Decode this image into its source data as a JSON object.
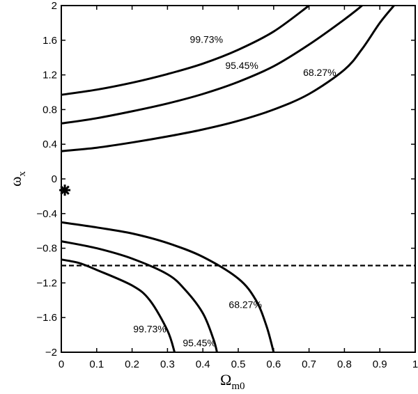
{
  "chart_data": {
    "type": "line",
    "title": "",
    "xlabel": {
      "symbol": "Ω",
      "subscript": "m0"
    },
    "ylabel": {
      "symbol": "ω",
      "subscript": "x"
    },
    "xlim": [
      0,
      1
    ],
    "ylim": [
      -2,
      2
    ],
    "xticks": [
      "0",
      "0.1",
      "0.2",
      "0.3",
      "0.4",
      "0.5",
      "0.6",
      "0.7",
      "0.8",
      "0.9",
      "1"
    ],
    "yticks": [
      "−2",
      "−1.6",
      "−1.2",
      "−0.8",
      "−0.4",
      "0",
      "0.4",
      "0.8",
      "1.2",
      "1.6",
      "2"
    ],
    "grid": false,
    "reference_line": {
      "y": -1,
      "style": "dashed"
    },
    "best_fit_point": {
      "x": 0.01,
      "y": -0.13,
      "marker": "asterisk"
    },
    "contours": [
      {
        "label": "68.27%",
        "upper_branch": [
          [
            0,
            0.32
          ],
          [
            0.1,
            0.36
          ],
          [
            0.2,
            0.42
          ],
          [
            0.3,
            0.49
          ],
          [
            0.4,
            0.57
          ],
          [
            0.5,
            0.67
          ],
          [
            0.6,
            0.8
          ],
          [
            0.7,
            0.98
          ],
          [
            0.8,
            1.26
          ],
          [
            0.85,
            1.5
          ],
          [
            0.9,
            1.8
          ],
          [
            0.94,
            2.0
          ]
        ],
        "lower_branch": [
          [
            0,
            -0.5
          ],
          [
            0.1,
            -0.56
          ],
          [
            0.2,
            -0.63
          ],
          [
            0.3,
            -0.74
          ],
          [
            0.4,
            -0.9
          ],
          [
            0.5,
            -1.15
          ],
          [
            0.55,
            -1.4
          ],
          [
            0.58,
            -1.7
          ],
          [
            0.6,
            -2.0
          ]
        ]
      },
      {
        "label": "95.45%",
        "upper_branch": [
          [
            0,
            0.64
          ],
          [
            0.1,
            0.7
          ],
          [
            0.2,
            0.78
          ],
          [
            0.3,
            0.87
          ],
          [
            0.4,
            0.98
          ],
          [
            0.5,
            1.12
          ],
          [
            0.6,
            1.3
          ],
          [
            0.7,
            1.55
          ],
          [
            0.8,
            1.84
          ],
          [
            0.85,
            2.0
          ]
        ],
        "lower_branch": [
          [
            0,
            -0.72
          ],
          [
            0.1,
            -0.8
          ],
          [
            0.2,
            -0.92
          ],
          [
            0.3,
            -1.1
          ],
          [
            0.35,
            -1.28
          ],
          [
            0.4,
            -1.55
          ],
          [
            0.43,
            -1.85
          ],
          [
            0.44,
            -2.0
          ]
        ]
      },
      {
        "label": "99.73%",
        "upper_branch": [
          [
            0,
            0.97
          ],
          [
            0.1,
            1.03
          ],
          [
            0.2,
            1.11
          ],
          [
            0.3,
            1.21
          ],
          [
            0.4,
            1.33
          ],
          [
            0.5,
            1.49
          ],
          [
            0.6,
            1.7
          ],
          [
            0.7,
            2.0
          ]
        ],
        "lower_branch": [
          [
            0,
            -0.93
          ],
          [
            0.05,
            -0.97
          ],
          [
            0.1,
            -1.05
          ],
          [
            0.2,
            -1.23
          ],
          [
            0.25,
            -1.4
          ],
          [
            0.3,
            -1.75
          ],
          [
            0.32,
            -2.0
          ]
        ]
      }
    ],
    "annotations": [
      {
        "text": "99.73%",
        "x": 0.41,
        "y": 1.57
      },
      {
        "text": "95.45%",
        "x": 0.51,
        "y": 1.27
      },
      {
        "text": "68.27%",
        "x": 0.73,
        "y": 1.19
      },
      {
        "text": "68.27%",
        "x": 0.52,
        "y": -1.49
      },
      {
        "text": "99.73%",
        "x": 0.25,
        "y": -1.77
      },
      {
        "text": "95.45%",
        "x": 0.39,
        "y": -1.93
      }
    ]
  }
}
